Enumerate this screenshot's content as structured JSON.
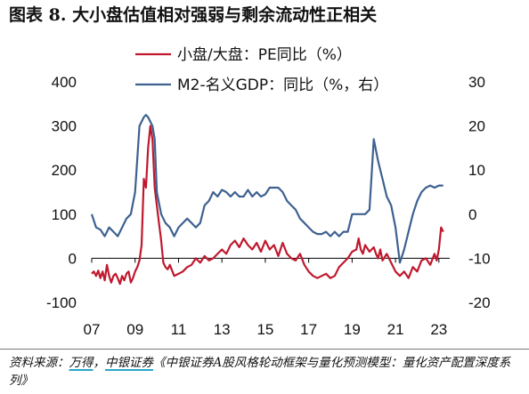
{
  "figure": {
    "title": "图表 8. 大小盘估值相对强弱与剩余流动性正相关",
    "source_prefix": "资料来源：",
    "source_1": "万得",
    "source_sep": "，",
    "source_2": "中银证券",
    "source_suffix": "《中银证券A股风格轮动框架与量化预测模型：量化资产配置深度系列》"
  },
  "chart_data": {
    "type": "line",
    "x_tick_labels": [
      "07",
      "09",
      "11",
      "13",
      "15",
      "17",
      "19",
      "21",
      "23"
    ],
    "x_range": [
      2007.0,
      2023.5
    ],
    "left_axis": {
      "ticks": [
        "400",
        "300",
        "200",
        "100",
        "0",
        "-100"
      ],
      "range": [
        -100,
        400
      ]
    },
    "right_axis": {
      "ticks": [
        "30",
        "20",
        "10",
        "0",
        "-10",
        "-20"
      ],
      "range": [
        -20,
        30
      ]
    },
    "grid": false,
    "legend_position": "top",
    "series": [
      {
        "name": "小盘/大盘：PE同比（%）",
        "axis": "left",
        "color": "#c0182e",
        "x": [
          2007.0,
          2007.1,
          2007.2,
          2007.3,
          2007.4,
          2007.5,
          2007.6,
          2007.7,
          2007.8,
          2007.9,
          2008.0,
          2008.1,
          2008.2,
          2008.3,
          2008.4,
          2008.5,
          2008.6,
          2008.7,
          2008.8,
          2008.9,
          2009.0,
          2009.1,
          2009.2,
          2009.3,
          2009.4,
          2009.5,
          2009.6,
          2009.7,
          2009.8,
          2009.9,
          2010.0,
          2010.1,
          2010.2,
          2010.3,
          2010.4,
          2010.5,
          2010.6,
          2010.8,
          2011.0,
          2011.2,
          2011.4,
          2011.6,
          2011.8,
          2012.0,
          2012.2,
          2012.4,
          2012.6,
          2012.8,
          2013.0,
          2013.2,
          2013.4,
          2013.6,
          2013.8,
          2014.0,
          2014.2,
          2014.4,
          2014.6,
          2014.8,
          2015.0,
          2015.2,
          2015.4,
          2015.6,
          2015.8,
          2016.0,
          2016.2,
          2016.4,
          2016.6,
          2016.8,
          2017.0,
          2017.2,
          2017.4,
          2017.6,
          2017.8,
          2018.0,
          2018.2,
          2018.4,
          2018.6,
          2018.8,
          2019.0,
          2019.2,
          2019.3,
          2019.4,
          2019.5,
          2019.6,
          2019.8,
          2020.0,
          2020.1,
          2020.2,
          2020.3,
          2020.4,
          2020.6,
          2020.8,
          2021.0,
          2021.2,
          2021.4,
          2021.6,
          2021.8,
          2022.0,
          2022.2,
          2022.4,
          2022.6,
          2022.8,
          2022.9,
          2023.0,
          2023.1,
          2023.2
        ],
        "values": [
          -35,
          -30,
          -40,
          -28,
          -45,
          -30,
          -50,
          -15,
          -40,
          -55,
          -40,
          -35,
          -45,
          -58,
          -40,
          -50,
          -35,
          -30,
          -55,
          -45,
          -30,
          -20,
          -5,
          30,
          180,
          160,
          250,
          300,
          270,
          160,
          120,
          80,
          40,
          -10,
          -20,
          -25,
          -15,
          -40,
          -35,
          -30,
          -20,
          -15,
          0,
          -10,
          5,
          -5,
          0,
          10,
          20,
          10,
          30,
          40,
          25,
          45,
          30,
          20,
          35,
          15,
          40,
          20,
          30,
          5,
          35,
          10,
          0,
          -5,
          10,
          -15,
          -30,
          -40,
          -45,
          -40,
          -35,
          -45,
          -40,
          -20,
          -10,
          0,
          15,
          20,
          45,
          20,
          10,
          30,
          15,
          25,
          10,
          0,
          20,
          -5,
          10,
          -10,
          -30,
          -40,
          -30,
          -45,
          -20,
          -30,
          -5,
          0,
          -15,
          10,
          -5,
          20,
          70,
          60
        ],
        "left_axis_note": ""
      },
      {
        "name": "M2-名义GDP：同比（%，右）",
        "axis": "right",
        "color": "#3d6190",
        "x": [
          2007.0,
          2007.2,
          2007.4,
          2007.6,
          2007.8,
          2008.0,
          2008.2,
          2008.4,
          2008.6,
          2008.8,
          2009.0,
          2009.2,
          2009.4,
          2009.5,
          2009.6,
          2009.8,
          2009.9,
          2010.0,
          2010.2,
          2010.4,
          2010.6,
          2010.8,
          2011.0,
          2011.2,
          2011.4,
          2011.6,
          2011.8,
          2012.0,
          2012.2,
          2012.4,
          2012.6,
          2012.8,
          2013.0,
          2013.2,
          2013.4,
          2013.6,
          2013.8,
          2014.0,
          2014.2,
          2014.4,
          2014.6,
          2014.8,
          2015.0,
          2015.2,
          2015.4,
          2015.6,
          2015.8,
          2016.0,
          2016.2,
          2016.4,
          2016.6,
          2016.8,
          2017.0,
          2017.2,
          2017.4,
          2017.6,
          2017.8,
          2018.0,
          2018.2,
          2018.4,
          2018.6,
          2018.8,
          2019.0,
          2019.2,
          2019.4,
          2019.6,
          2019.8,
          2020.0,
          2020.2,
          2020.4,
          2020.6,
          2020.8,
          2021.0,
          2021.2,
          2021.4,
          2021.6,
          2021.8,
          2022.0,
          2022.2,
          2022.4,
          2022.6,
          2022.8,
          2023.0,
          2023.2
        ],
        "values": [
          0,
          -3,
          -3.5,
          -5,
          -3,
          -4,
          -5,
          -3,
          -1,
          0,
          5,
          20,
          22,
          22.5,
          22,
          20,
          17,
          5,
          0,
          -2,
          -3,
          -5,
          -3,
          -2,
          -1,
          -2,
          -3,
          -2,
          2,
          3,
          5,
          4,
          5.5,
          5,
          4,
          5,
          4,
          4,
          5.5,
          4,
          5,
          4,
          4.5,
          6,
          6,
          6,
          5,
          3,
          2,
          1,
          -1,
          -2,
          -3,
          -4,
          -4.5,
          -4.5,
          -4,
          -5,
          -4,
          -5,
          -4,
          -4,
          0,
          0,
          0,
          0,
          1,
          17,
          12,
          8,
          4,
          2,
          -3,
          -11,
          -8,
          -4,
          0,
          3,
          5,
          6,
          6.5,
          6,
          6.5,
          6.5
        ]
      }
    ]
  }
}
